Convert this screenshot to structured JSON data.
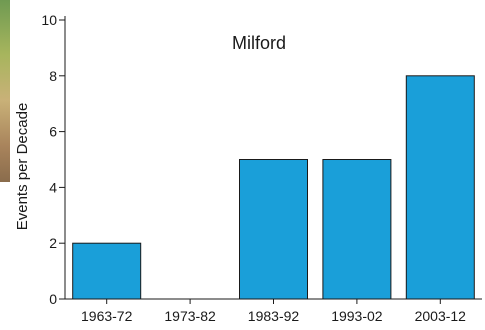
{
  "chart_data": {
    "type": "bar",
    "title": "Milford",
    "xlabel": "",
    "ylabel": "Events per Decade",
    "categories": [
      "1963-72",
      "1973-82",
      "1983-92",
      "1993-02",
      "2003-12"
    ],
    "values": [
      2,
      0,
      5,
      5,
      8
    ],
    "ylim": [
      0,
      10
    ],
    "yticks": [
      "0",
      "2",
      "4",
      "6",
      "8",
      "10"
    ],
    "grid": false,
    "colors": {
      "bar": "#1a9fd9",
      "bar_edge": "#1a1a1a",
      "axis": "#1a1a1a"
    }
  }
}
